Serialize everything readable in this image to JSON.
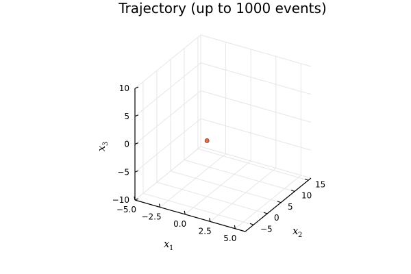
{
  "chart_data": {
    "type": "scatter",
    "title": "Trajectory (up to 1000 events)",
    "xlabel": {
      "base": "x",
      "sub": "1"
    },
    "ylabel": {
      "base": "x",
      "sub": "2"
    },
    "zlabel": {
      "base": "x",
      "sub": "3"
    },
    "x_ticks": [
      "−5.0",
      "−2.5",
      "0.0",
      "2.5",
      "5.0"
    ],
    "y_ticks": [
      "−5",
      "0",
      "5",
      "10",
      "15"
    ],
    "z_ticks": [
      "−10",
      "−5",
      "0",
      "5",
      "10"
    ],
    "xlim": [
      -5,
      6
    ],
    "ylim": [
      -8,
      16
    ],
    "zlim": [
      -10,
      10
    ],
    "grid": true,
    "points": [
      {
        "x": 0,
        "y": 0,
        "z": 0
      }
    ],
    "marker_color": "#e26f46",
    "marker_edge": "#7a3a24"
  }
}
